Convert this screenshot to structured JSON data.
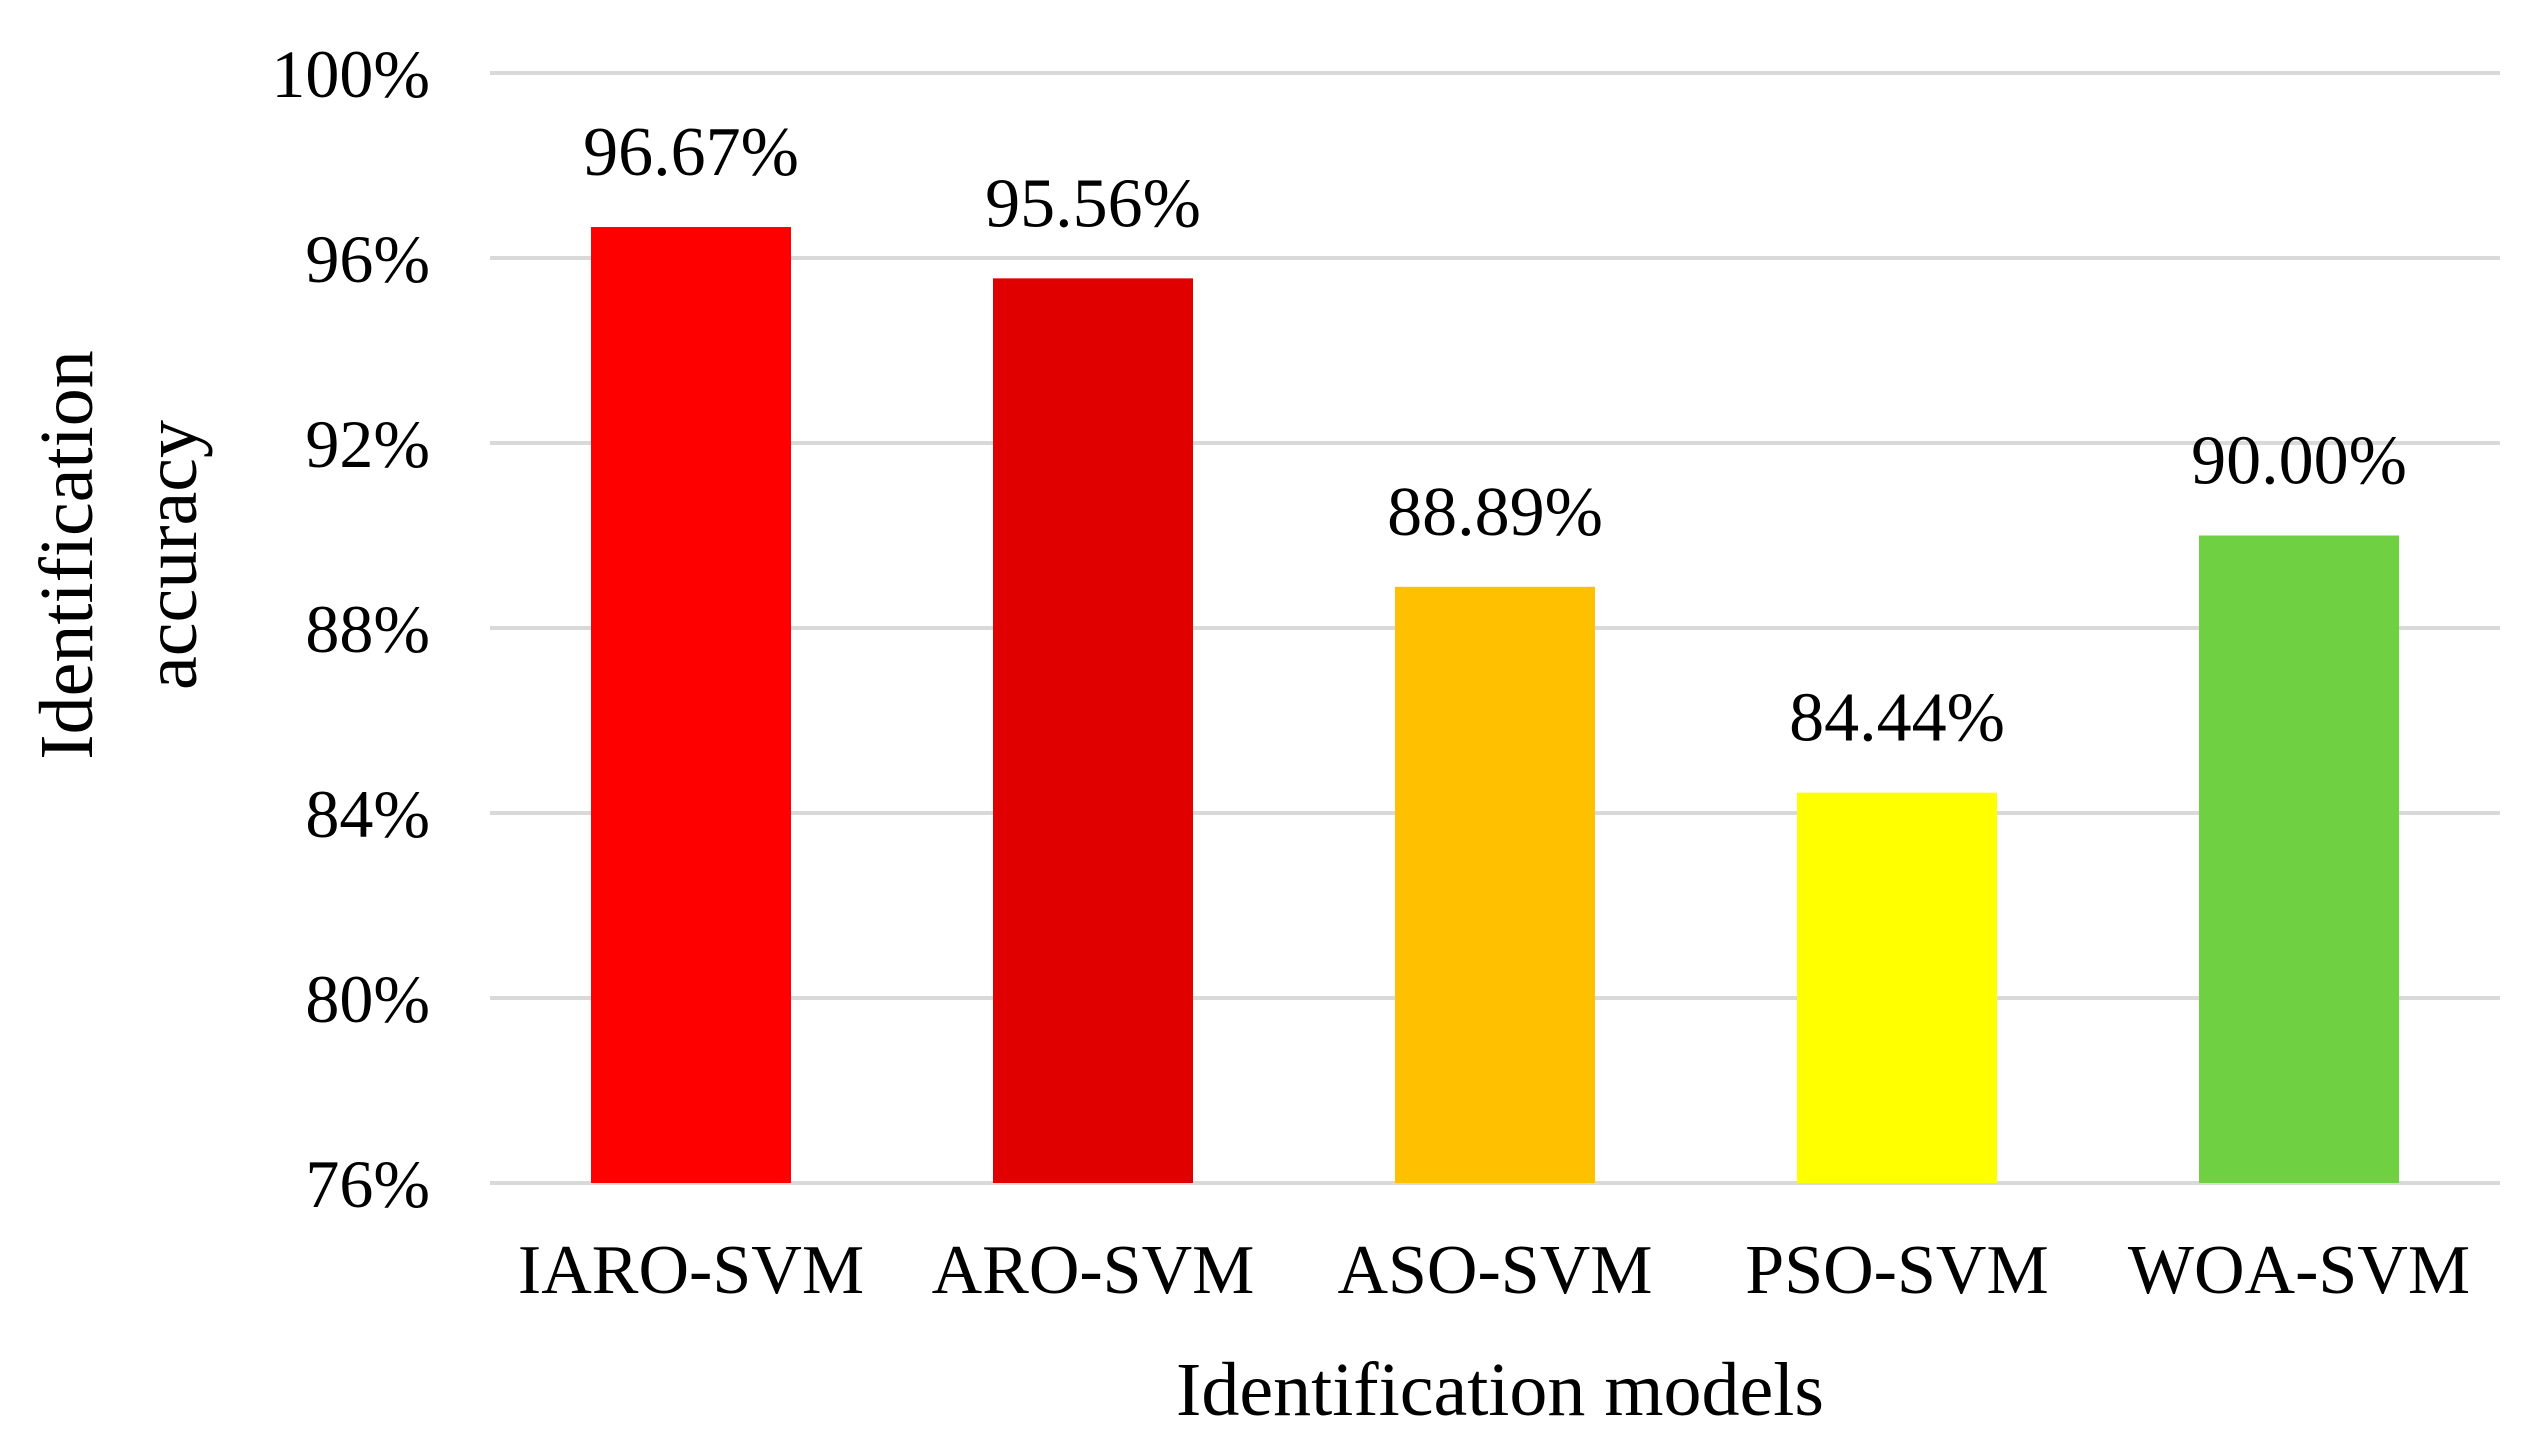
{
  "chart_data": {
    "type": "bar",
    "title": "",
    "xlabel": "Identification models",
    "ylabel_lines": [
      "Identification",
      "accuracy"
    ],
    "categories": [
      "IARO-SVM",
      "ARO-SVM",
      "ASO-SVM",
      "PSO-SVM",
      "WOA-SVM"
    ],
    "values": [
      96.67,
      95.56,
      88.89,
      84.44,
      90.0
    ],
    "data_labels": [
      "96.67%",
      "95.56%",
      "88.89%",
      "84.44%",
      "90.00%"
    ],
    "colors": [
      "#ff0000",
      "#e00000",
      "#ffc000",
      "#ffff00",
      "#6fd042"
    ],
    "ylim": [
      76,
      100
    ],
    "yticks": [
      76,
      80,
      84,
      88,
      92,
      96,
      100
    ],
    "ytick_labels": [
      "76%",
      "80%",
      "84%",
      "88%",
      "92%",
      "96%",
      "100%"
    ],
    "grid": true,
    "legend": "none"
  }
}
